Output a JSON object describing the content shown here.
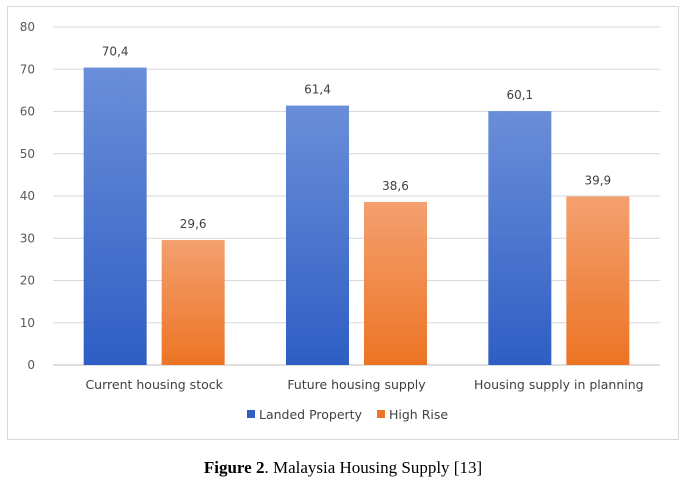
{
  "caption": {
    "label": "Figure 2",
    "text": ". Malaysia Housing Supply [13]"
  },
  "colors": {
    "landed_top": "#6a8ed8",
    "landed_bottom": "#2f5ec4",
    "highrise_top": "#f4a070",
    "highrise_bottom": "#ec7424",
    "grid": "#d9d9d9",
    "axis": "#bfbfbf"
  },
  "chart_data": {
    "type": "bar",
    "categories": [
      "Current housing stock",
      "Future housing supply",
      "Housing supply in planning"
    ],
    "series": [
      {
        "name": "Landed Property",
        "values": [
          70.4,
          61.4,
          60.1
        ],
        "labels": [
          "70,4",
          "61,4",
          "60,1"
        ]
      },
      {
        "name": "High Rise",
        "values": [
          29.6,
          38.6,
          39.9
        ],
        "labels": [
          "29,6",
          "38,6",
          "39,9"
        ]
      }
    ],
    "ylim": [
      0,
      80
    ],
    "yticks": [
      0,
      10,
      20,
      30,
      40,
      50,
      60,
      70,
      80
    ],
    "grid": true,
    "legend": "bottom"
  }
}
